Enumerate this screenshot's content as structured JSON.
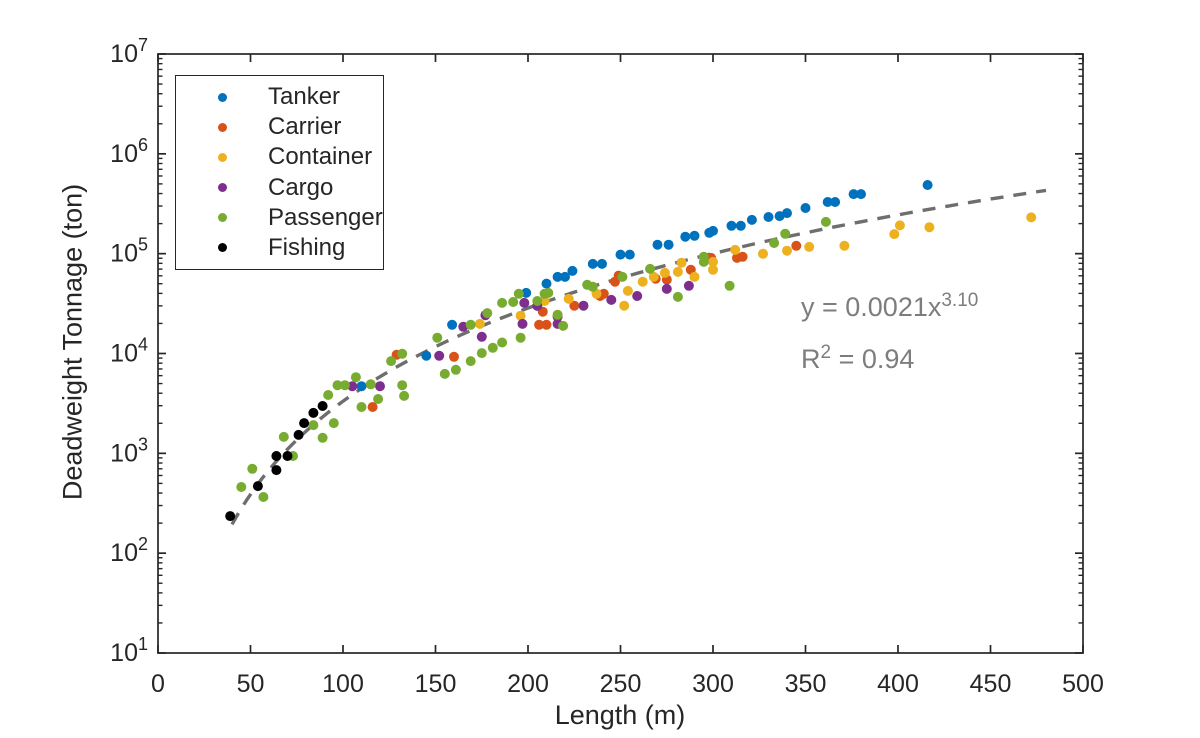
{
  "figure": {
    "background": "#ffffff",
    "axis_color": "#262626",
    "tick_label_color": "#262626"
  },
  "chart_data": {
    "type": "scatter",
    "title": "",
    "xlabel": "Length (m)",
    "ylabel": "Deadweight Tonnage (ton)",
    "grid": false,
    "legend_position": "top-left",
    "x_axis": {
      "min": 0,
      "max": 500,
      "ticks": [
        0,
        50,
        100,
        150,
        200,
        250,
        300,
        350,
        400,
        450,
        500
      ]
    },
    "y_axis": {
      "scale": "log",
      "min_exp": 1,
      "max_exp": 7,
      "base": "10",
      "minor_multiples": [
        2,
        3,
        4,
        5,
        6,
        7,
        8,
        9
      ]
    },
    "series": [
      {
        "name": "Tanker",
        "color": "#0072BD",
        "points": [
          [
            110,
            4700
          ],
          [
            145,
            9500
          ],
          [
            159,
            19400
          ],
          [
            199,
            40500
          ],
          [
            210,
            50100
          ],
          [
            216,
            58500
          ],
          [
            220,
            58500
          ],
          [
            224,
            67200
          ],
          [
            235,
            78900
          ],
          [
            240,
            78900
          ],
          [
            250,
            97800
          ],
          [
            255,
            97800
          ],
          [
            270,
            123000
          ],
          [
            276,
            123000
          ],
          [
            285,
            148000
          ],
          [
            290,
            151000
          ],
          [
            298,
            162000
          ],
          [
            300,
            169000
          ],
          [
            310,
            190000
          ],
          [
            315,
            190000
          ],
          [
            321,
            218000
          ],
          [
            330,
            233000
          ],
          [
            336,
            238000
          ],
          [
            340,
            255000
          ],
          [
            350,
            287000
          ],
          [
            362,
            329000
          ],
          [
            366,
            329000
          ],
          [
            376,
            395000
          ],
          [
            380,
            395000
          ],
          [
            416,
            487000
          ]
        ]
      },
      {
        "name": "Carrier",
        "color": "#D95319",
        "points": [
          [
            116,
            2910
          ],
          [
            129,
            9700
          ],
          [
            160,
            9260
          ],
          [
            206,
            19400
          ],
          [
            210,
            19400
          ],
          [
            208,
            26200
          ],
          [
            225,
            30100
          ],
          [
            239,
            37700
          ],
          [
            241,
            39600
          ],
          [
            247,
            52400
          ],
          [
            249,
            60300
          ],
          [
            269,
            56200
          ],
          [
            275,
            54900
          ],
          [
            288,
            69000
          ],
          [
            299,
            90800
          ],
          [
            313,
            90800
          ],
          [
            316,
            93000
          ],
          [
            345,
            120000
          ]
        ]
      },
      {
        "name": "Container",
        "color": "#EDB120",
        "points": [
          [
            174,
            19800
          ],
          [
            196,
            23900
          ],
          [
            209,
            33600
          ],
          [
            222,
            35200
          ],
          [
            237,
            39600
          ],
          [
            252,
            30100
          ],
          [
            254,
            42400
          ],
          [
            262,
            52400
          ],
          [
            268,
            58500
          ],
          [
            274,
            64200
          ],
          [
            281,
            65700
          ],
          [
            283,
            81100
          ],
          [
            290,
            58500
          ],
          [
            300,
            82700
          ],
          [
            300,
            69000
          ],
          [
            312,
            109000
          ],
          [
            327,
            99700
          ],
          [
            340,
            107000
          ],
          [
            352,
            117000
          ],
          [
            371,
            120000
          ],
          [
            398,
            157000
          ],
          [
            401,
            192000
          ],
          [
            417,
            184000
          ],
          [
            472,
            231000
          ]
        ]
      },
      {
        "name": "Cargo",
        "color": "#7E2F8E",
        "points": [
          [
            105,
            4700
          ],
          [
            120,
            4700
          ],
          [
            152,
            9480
          ],
          [
            165,
            18500
          ],
          [
            175,
            14700
          ],
          [
            177,
            24200
          ],
          [
            197,
            19800
          ],
          [
            198,
            32100
          ],
          [
            205,
            30000
          ],
          [
            216,
            19800
          ],
          [
            216,
            23300
          ],
          [
            230,
            30100
          ],
          [
            245,
            34400
          ],
          [
            259,
            37700
          ],
          [
            275,
            44400
          ],
          [
            287,
            47700
          ]
        ]
      },
      {
        "name": "Passenger",
        "color": "#77AC30",
        "points": [
          [
            45,
            460
          ],
          [
            51,
            700
          ],
          [
            57,
            365
          ],
          [
            68,
            1460
          ],
          [
            73,
            940
          ],
          [
            84,
            1920
          ],
          [
            89,
            1430
          ],
          [
            92,
            3840
          ],
          [
            95,
            2010
          ],
          [
            97,
            4810
          ],
          [
            101,
            4810
          ],
          [
            107,
            5790
          ],
          [
            110,
            2910
          ],
          [
            115,
            4920
          ],
          [
            119,
            3500
          ],
          [
            126,
            8400
          ],
          [
            132,
            9920
          ],
          [
            132,
            4810
          ],
          [
            133,
            3760
          ],
          [
            151,
            14400
          ],
          [
            155,
            6250
          ],
          [
            161,
            6860
          ],
          [
            169,
            8400
          ],
          [
            175,
            10100
          ],
          [
            181,
            11400
          ],
          [
            186,
            12900
          ],
          [
            169,
            19400
          ],
          [
            178,
            25400
          ],
          [
            186,
            32100
          ],
          [
            192,
            32800
          ],
          [
            195,
            39600
          ],
          [
            196,
            14400
          ],
          [
            205,
            33600
          ],
          [
            209,
            39600
          ],
          [
            211,
            40500
          ],
          [
            216,
            24400
          ],
          [
            219,
            18900
          ],
          [
            232,
            48800
          ],
          [
            235,
            46600
          ],
          [
            251,
            58500
          ],
          [
            266,
            70400
          ],
          [
            281,
            36900
          ],
          [
            295,
            93000
          ],
          [
            295,
            82700
          ],
          [
            309,
            47700
          ],
          [
            333,
            128000
          ],
          [
            339,
            158000
          ],
          [
            361,
            208000
          ]
        ]
      },
      {
        "name": "Fishing",
        "color": "#000000",
        "points": [
          [
            39,
            235
          ],
          [
            54,
            470
          ],
          [
            64,
            680
          ],
          [
            64,
            940
          ],
          [
            70,
            940
          ],
          [
            76,
            1530
          ],
          [
            79,
            2010
          ],
          [
            84,
            2540
          ],
          [
            89,
            2980
          ]
        ]
      }
    ],
    "fit": {
      "label_base": "y = 0.0021x",
      "exponent": "3.10",
      "r2_prefix": "R",
      "r2_sup": "2",
      "r2_rest": " = 0.94",
      "a": 0.0021,
      "b": 3.1,
      "x_start": 40,
      "x_end": 480,
      "line_color": "#6e6e6e",
      "annotation_color": "#7d7d7d"
    }
  }
}
